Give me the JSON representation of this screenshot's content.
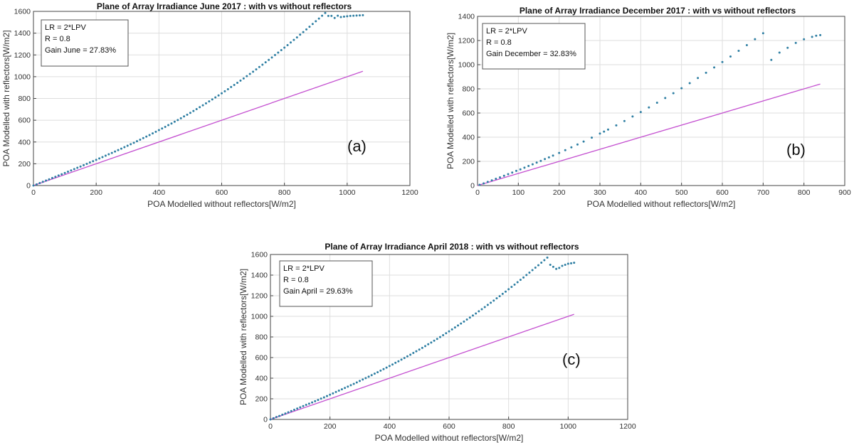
{
  "chart_data": [
    {
      "type": "scatter",
      "panel_label": "(a)",
      "title": "Plane of Array Irradiance June 2017 : with vs without reflectors",
      "xlabel": "POA Modelled without reflectors[W/m2]",
      "ylabel": "POA Modelled with reflectors[W/m2]",
      "xlim": [
        0,
        1200
      ],
      "ylim": [
        0,
        1600
      ],
      "xticks": [
        0,
        200,
        400,
        600,
        800,
        1000,
        1200
      ],
      "yticks": [
        0,
        200,
        400,
        600,
        800,
        1000,
        1200,
        1400,
        1600
      ],
      "grid": true,
      "annotation": [
        "LR = 2*LPV",
        "R = 0.8",
        "Gain June = 27.83%"
      ],
      "series": [
        {
          "color": "#2f7fa3",
          "x": [
            0,
            10,
            20,
            30,
            40,
            50,
            60,
            70,
            80,
            90,
            100,
            110,
            120,
            130,
            140,
            150,
            160,
            170,
            180,
            190,
            200,
            210,
            220,
            230,
            240,
            250,
            260,
            270,
            280,
            290,
            300,
            310,
            320,
            330,
            340,
            350,
            360,
            370,
            380,
            390,
            400,
            410,
            420,
            430,
            440,
            450,
            460,
            470,
            480,
            490,
            500,
            510,
            520,
            530,
            540,
            550,
            560,
            570,
            580,
            590,
            600,
            610,
            620,
            630,
            640,
            650,
            660,
            670,
            680,
            690,
            700,
            710,
            720,
            730,
            740,
            750,
            760,
            770,
            780,
            790,
            800,
            810,
            820,
            830,
            840,
            850,
            860,
            870,
            880,
            890,
            900,
            910,
            920,
            930,
            940,
            950,
            960,
            970,
            980,
            990,
            1000,
            1010,
            1020,
            1030,
            1040,
            1050
          ],
          "y": [
            0,
            11,
            23,
            34,
            46,
            57,
            69,
            80,
            92,
            104,
            115,
            127,
            139,
            151,
            163,
            175,
            187,
            199,
            212,
            224,
            236,
            249,
            261,
            274,
            287,
            300,
            313,
            326,
            339,
            353,
            366,
            380,
            393,
            407,
            421,
            436,
            450,
            464,
            479,
            494,
            509,
            524,
            539,
            555,
            570,
            586,
            602,
            618,
            635,
            651,
            668,
            685,
            702,
            720,
            737,
            755,
            773,
            791,
            810,
            828,
            847,
            866,
            885,
            905,
            924,
            944,
            964,
            984,
            1005,
            1025,
            1046,
            1067,
            1089,
            1110,
            1132,
            1154,
            1176,
            1199,
            1221,
            1244,
            1267,
            1290,
            1314,
            1338,
            1361,
            1386,
            1410,
            1434,
            1459,
            1484,
            1509,
            1534,
            1560,
            1585,
            1558,
            1558,
            1540,
            1560,
            1548,
            1552,
            1555,
            1558,
            1560,
            1562,
            1563,
            1565
          ]
        }
      ],
      "reference_line": {
        "color": "#c450d0",
        "x": [
          0,
          1050
        ],
        "y": [
          0,
          1050
        ]
      }
    },
    {
      "type": "scatter",
      "panel_label": "(b)",
      "title": "Plane of Array Irradiance December 2017 : with vs without reflectors",
      "xlabel": "POA Modelled without reflectors[W/m2]",
      "ylabel": "POA Modelled with reflectors[W/m2]",
      "xlim": [
        0,
        900
      ],
      "ylim": [
        0,
        1400
      ],
      "xticks": [
        0,
        100,
        200,
        300,
        400,
        500,
        600,
        700,
        800,
        900
      ],
      "yticks": [
        0,
        200,
        400,
        600,
        800,
        1000,
        1200,
        1400
      ],
      "grid": true,
      "annotation": [
        "LR = 2*LPV",
        "R = 0.8",
        "Gain December = 32.83%"
      ],
      "series": [
        {
          "color": "#2f7fa3",
          "x": [
            5,
            15,
            25,
            35,
            45,
            55,
            65,
            75,
            85,
            95,
            105,
            115,
            125,
            135,
            145,
            155,
            165,
            175,
            185,
            200,
            215,
            230,
            245,
            260,
            280,
            300,
            310,
            320,
            340,
            360,
            380,
            400,
            420,
            440,
            460,
            480,
            500,
            520,
            540,
            560,
            580,
            600,
            620,
            640,
            660,
            680,
            700,
            720,
            740,
            760,
            780,
            800,
            820,
            830,
            840
          ],
          "y": [
            6,
            18,
            30,
            43,
            56,
            68,
            81,
            94,
            107,
            121,
            134,
            148,
            162,
            176,
            190,
            204,
            219,
            233,
            248,
            270,
            293,
            316,
            340,
            364,
            396,
            430,
            446,
            463,
            498,
            534,
            571,
            608,
            646,
            685,
            724,
            764,
            805,
            847,
            890,
            933,
            977,
            1022,
            1068,
            1115,
            1162,
            1211,
            1260,
            1040,
            1100,
            1140,
            1180,
            1210,
            1230,
            1240,
            1245
          ]
        }
      ],
      "reference_line": {
        "color": "#c450d0",
        "x": [
          0,
          840
        ],
        "y": [
          0,
          840
        ]
      }
    },
    {
      "type": "scatter",
      "panel_label": "(c)",
      "title": "Plane of Array Irradiance April 2018 : with vs without reflectors",
      "xlabel": "POA Modelled without reflectors[W/m2]",
      "ylabel": "POA Modelled with reflectors[W/m2]",
      "xlim": [
        0,
        1200
      ],
      "ylim": [
        0,
        1600
      ],
      "xticks": [
        0,
        200,
        400,
        600,
        800,
        1000,
        1200
      ],
      "yticks": [
        0,
        200,
        400,
        600,
        800,
        1000,
        1200,
        1400,
        1600
      ],
      "grid": true,
      "annotation": [
        "LR = 2*LPV",
        "R = 0.8",
        "Gain April = 29.63%"
      ],
      "series": [
        {
          "color": "#2f7fa3",
          "x": [
            0,
            10,
            20,
            30,
            40,
            50,
            60,
            70,
            80,
            90,
            100,
            110,
            120,
            130,
            140,
            150,
            160,
            170,
            180,
            190,
            200,
            210,
            220,
            230,
            240,
            250,
            260,
            270,
            280,
            290,
            300,
            310,
            320,
            330,
            340,
            350,
            360,
            370,
            380,
            390,
            400,
            410,
            420,
            430,
            440,
            450,
            460,
            470,
            480,
            490,
            500,
            510,
            520,
            530,
            540,
            550,
            560,
            570,
            580,
            590,
            600,
            610,
            620,
            630,
            640,
            650,
            660,
            670,
            680,
            690,
            700,
            710,
            720,
            730,
            740,
            750,
            760,
            770,
            780,
            790,
            800,
            810,
            820,
            830,
            840,
            850,
            860,
            870,
            880,
            890,
            900,
            910,
            920,
            930,
            940,
            950,
            960,
            970,
            980,
            990,
            1000,
            1010,
            1020
          ],
          "y": [
            0,
            11,
            23,
            34,
            46,
            57,
            69,
            81,
            93,
            105,
            117,
            129,
            141,
            153,
            165,
            177,
            189,
            202,
            214,
            227,
            240,
            253,
            266,
            279,
            292,
            305,
            318,
            332,
            345,
            359,
            373,
            387,
            401,
            415,
            429,
            444,
            458,
            473,
            488,
            503,
            518,
            533,
            549,
            564,
            580,
            596,
            612,
            628,
            645,
            661,
            678,
            694,
            711,
            729,
            746,
            764,
            781,
            799,
            817,
            836,
            854,
            873,
            892,
            911,
            930,
            949,
            969,
            988,
            1008,
            1028,
            1049,
            1069,
            1090,
            1111,
            1132,
            1153,
            1175,
            1196,
            1218,
            1240,
            1263,
            1285,
            1308,
            1331,
            1354,
            1377,
            1401,
            1424,
            1448,
            1472,
            1496,
            1521,
            1545,
            1570,
            1500,
            1480,
            1460,
            1470,
            1490,
            1500,
            1510,
            1515,
            1520
          ]
        }
      ],
      "reference_line": {
        "color": "#c450d0",
        "x": [
          0,
          1020
        ],
        "y": [
          0,
          1020
        ]
      }
    }
  ]
}
